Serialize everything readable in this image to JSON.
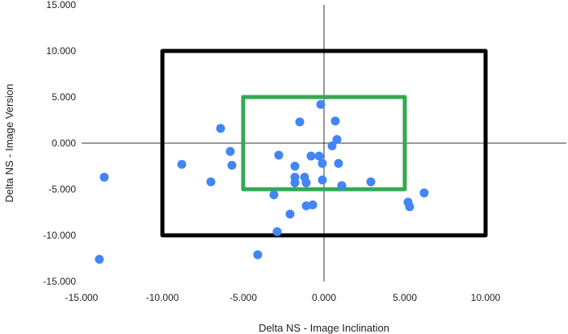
{
  "chart_data": {
    "type": "scatter",
    "title": "",
    "xlabel": "Delta NS - Image Inclination",
    "ylabel": "Delta NS - Image Version",
    "xlim": [
      -15,
      15
    ],
    "ylim": [
      -15,
      15
    ],
    "x_ticks": [
      -15,
      -10,
      -5,
      0,
      5,
      10
    ],
    "x_tick_labels": [
      "-15.000",
      "-10.000",
      "-5.000",
      "0.000",
      "5.000",
      "10.000"
    ],
    "y_ticks": [
      15,
      10,
      5,
      0,
      -5,
      -10,
      -15
    ],
    "y_tick_labels": [
      "15.000",
      "10.000",
      "5.000",
      "0.000",
      "-5.000",
      "-10.000",
      "-15.000"
    ],
    "grid": false,
    "colors": {
      "points": "#4285f4",
      "outer_box": "#000000",
      "inner_box": "#34a853",
      "axes": "#333333"
    },
    "boxes": [
      {
        "name": "outer",
        "x_range": [
          -10,
          10
        ],
        "y_range": [
          -10,
          10
        ]
      },
      {
        "name": "inner",
        "x_range": [
          -5,
          5
        ],
        "y_range": [
          -5,
          5
        ]
      }
    ],
    "series": [
      {
        "points": [
          [
            -13.9,
            -12.6
          ],
          [
            -13.6,
            -3.7
          ],
          [
            -8.8,
            -2.3
          ],
          [
            -7.0,
            -4.2
          ],
          [
            -6.4,
            1.6
          ],
          [
            -5.8,
            -0.9
          ],
          [
            -5.7,
            -2.4
          ],
          [
            -4.1,
            -12.1
          ],
          [
            -3.1,
            -5.6
          ],
          [
            -2.9,
            -9.6
          ],
          [
            -2.8,
            -1.3
          ],
          [
            -2.1,
            -7.7
          ],
          [
            -1.8,
            -2.5
          ],
          [
            -1.8,
            -3.7
          ],
          [
            -1.8,
            -4.3
          ],
          [
            -1.5,
            2.3
          ],
          [
            -1.2,
            -3.7
          ],
          [
            -1.1,
            -4.3
          ],
          [
            -1.1,
            -6.8
          ],
          [
            -0.8,
            -1.4
          ],
          [
            -0.7,
            -6.7
          ],
          [
            -0.3,
            -1.4
          ],
          [
            -0.2,
            4.2
          ],
          [
            -0.1,
            -2.2
          ],
          [
            -0.1,
            -4.0
          ],
          [
            0.5,
            -0.3
          ],
          [
            0.7,
            2.4
          ],
          [
            0.8,
            0.4
          ],
          [
            0.9,
            -2.2
          ],
          [
            1.1,
            -4.6
          ],
          [
            2.9,
            -4.2
          ],
          [
            5.2,
            -6.4
          ],
          [
            5.3,
            -6.9
          ],
          [
            6.2,
            -5.4
          ]
        ]
      }
    ]
  }
}
